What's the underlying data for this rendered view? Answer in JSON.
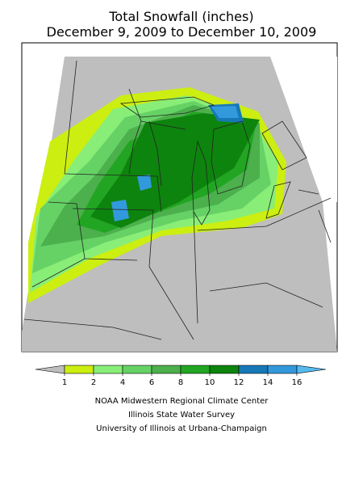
{
  "title": [
    "Total Snowfall (inches)",
    "December 9, 2009 to December 10, 2009"
  ],
  "legend": {
    "ticks": [
      1,
      2,
      4,
      6,
      8,
      10,
      12,
      14,
      16
    ],
    "colors": [
      "#bebebe",
      "#ccee11",
      "#88ee77",
      "#66d266",
      "#4cb04c",
      "#22a522",
      "#0d840d",
      "#1778b8",
      "#3399dd",
      "#55bbee"
    ]
  },
  "credits": [
    "NOAA Midwestern Regional Climate Center",
    "Illinois State Water Survey",
    "University of Illinois at Urbana-Champaign"
  ]
}
